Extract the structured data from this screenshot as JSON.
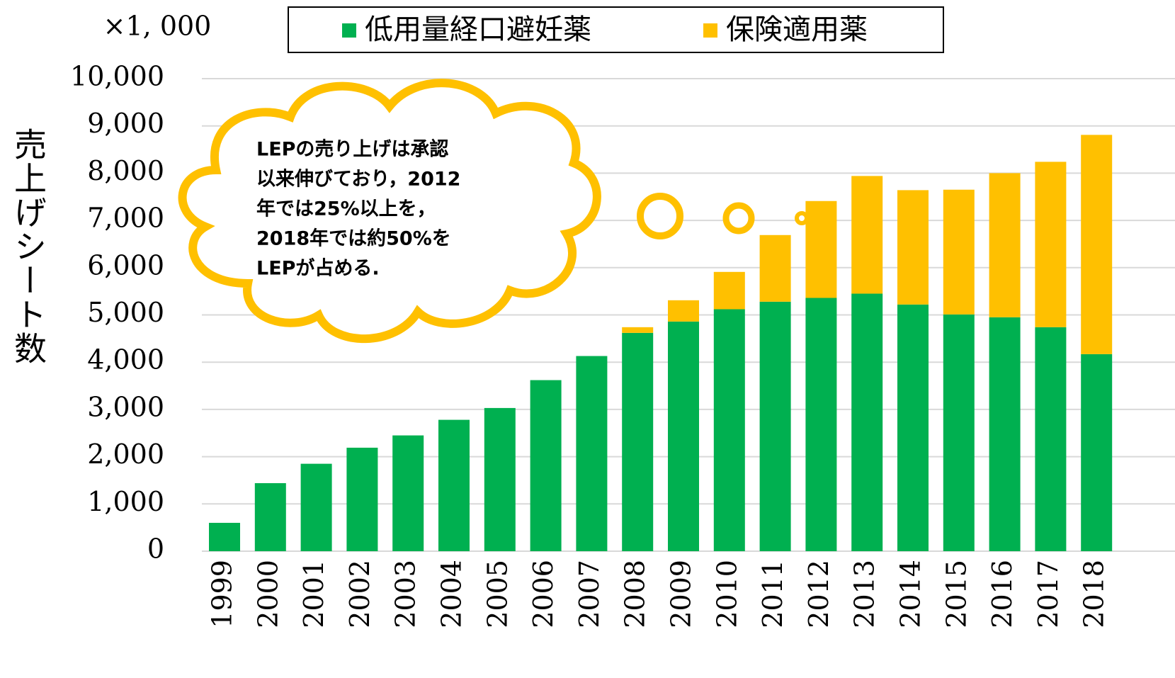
{
  "chart_data": {
    "type": "bar",
    "stacked": true,
    "unit_label": "×1, 000",
    "y_label": "売上げシート数",
    "annotation": [
      "LEPの売り上げは承認",
      "以来伸びており，2012",
      "年では25%以上を，",
      "2018年では約50%を",
      "LEPが占める."
    ],
    "categories": [
      "1999",
      "2000",
      "2001",
      "2002",
      "2003",
      "2004",
      "2005",
      "2006",
      "2007",
      "2008",
      "2009",
      "2010",
      "2011",
      "2012",
      "2013",
      "2014",
      "2015",
      "2016",
      "2017",
      "2018"
    ],
    "series": [
      {
        "name": "低用量経口避妊薬",
        "color": "#00b050",
        "values": [
          600,
          1440,
          1850,
          2190,
          2450,
          2780,
          3030,
          3620,
          4130,
          4620,
          4860,
          5120,
          5280,
          5360,
          5450,
          5220,
          5010,
          4950,
          4740,
          4170
        ]
      },
      {
        "name": "保険適用薬",
        "color": "#ffc000",
        "values": [
          0,
          0,
          0,
          0,
          0,
          0,
          0,
          0,
          0,
          120,
          450,
          790,
          1410,
          2050,
          2490,
          2420,
          2640,
          3050,
          3500,
          4640
        ]
      }
    ],
    "ylim": [
      0,
      10000
    ],
    "yticks": [
      0,
      {
        "value": 1000,
        "label": "1,000"
      },
      {
        "value": 2000,
        "label": "2,000"
      },
      {
        "value": 3000,
        "label": "3,000"
      },
      {
        "value": 4000,
        "label": "4,000"
      },
      {
        "value": 5000,
        "label": "5,000"
      },
      {
        "value": 6000,
        "label": "6,000"
      },
      {
        "value": 7000,
        "label": "7,000"
      },
      {
        "value": 8000,
        "label": "8,000"
      },
      {
        "value": 9000,
        "label": "9,000"
      },
      {
        "value": 10000,
        "label": "10,000"
      }
    ],
    "grid": true
  }
}
